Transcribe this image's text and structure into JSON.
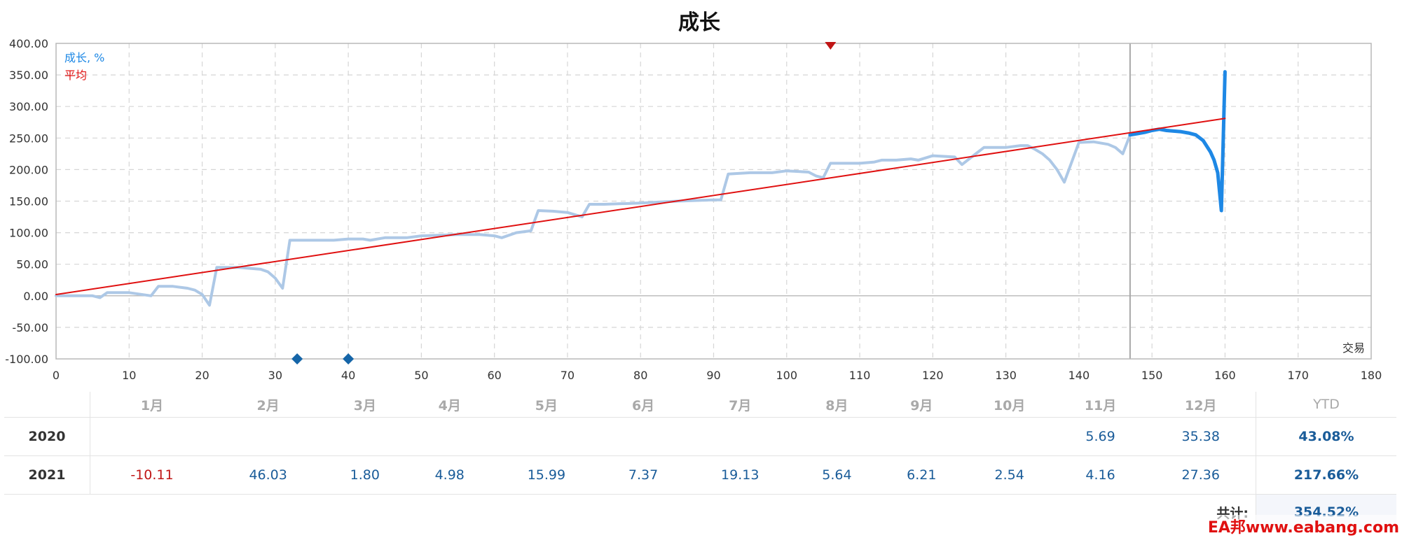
{
  "chart_data": {
    "type": "line",
    "title": "成长",
    "xlabel": "交易",
    "xlim": [
      0,
      180
    ],
    "ylim": [
      -100,
      400
    ],
    "xticks": [
      0,
      10,
      20,
      30,
      40,
      50,
      60,
      70,
      80,
      90,
      100,
      110,
      120,
      130,
      140,
      150,
      160,
      170,
      180
    ],
    "yticks": [
      "400.00",
      "350.00",
      "300.00",
      "250.00",
      "200.00",
      "150.00",
      "100.00",
      "50.00",
      "0.00",
      "-50.00",
      "-100.00"
    ],
    "grid": true,
    "legend_position": "top-left",
    "divider_x": 147,
    "series": [
      {
        "name": "成长, %",
        "color": "#adc8e6",
        "x": [
          0,
          5,
          6,
          7,
          10,
          13,
          14,
          16,
          18,
          19,
          20,
          21,
          22,
          25,
          28,
          29,
          30,
          31,
          32,
          35,
          38,
          40,
          42,
          43,
          45,
          48,
          50,
          55,
          58,
          60,
          61,
          63,
          65,
          66,
          68,
          70,
          72,
          73,
          75,
          80,
          85,
          90,
          91,
          92,
          95,
          98,
          100,
          103,
          104,
          105,
          106,
          108,
          110,
          112,
          113,
          115,
          117,
          118,
          120,
          123,
          124,
          127,
          130,
          132,
          133,
          134,
          135,
          136,
          137,
          138,
          140,
          142,
          144,
          145,
          146,
          147
        ],
        "y": [
          0,
          0,
          -3,
          5,
          5,
          0,
          15,
          15,
          12,
          9,
          2,
          -15,
          45,
          45,
          42,
          38,
          28,
          12,
          88,
          88,
          88,
          90,
          90,
          88,
          92,
          92,
          95,
          97,
          97,
          95,
          92,
          100,
          103,
          135,
          134,
          132,
          125,
          145,
          145,
          147,
          150,
          152,
          152,
          193,
          195,
          195,
          198,
          196,
          190,
          187,
          210,
          210,
          210,
          212,
          215,
          215,
          217,
          215,
          222,
          220,
          208,
          235,
          235,
          238,
          238,
          232,
          225,
          215,
          200,
          180,
          243,
          244,
          240,
          235,
          225,
          255
        ]
      },
      {
        "name": "",
        "color": "#1e88e5",
        "x": [
          147,
          148,
          149,
          150,
          151,
          152,
          153,
          154,
          155,
          156,
          157,
          158,
          158.5,
          159,
          159.5,
          160
        ],
        "y": [
          255,
          257,
          259,
          262,
          264,
          262,
          261,
          260,
          258,
          255,
          246,
          228,
          215,
          195,
          135,
          355
        ]
      },
      {
        "name": "平均",
        "color": "#e01010",
        "x": [
          0,
          160
        ],
        "y": [
          2,
          281
        ]
      }
    ],
    "markers": [
      {
        "x": 106,
        "y": 400,
        "color": "#c01515",
        "shape": "triangle-down"
      },
      {
        "x": 33,
        "y": -100,
        "color": "#1565a8",
        "shape": "diamond"
      },
      {
        "x": 40,
        "y": -100,
        "color": "#1565a8",
        "shape": "diamond"
      }
    ]
  },
  "table": {
    "months": [
      "1月",
      "2月",
      "3月",
      "4月",
      "5月",
      "6月",
      "7月",
      "8月",
      "9月",
      "10月",
      "11月",
      "12月"
    ],
    "ytd_label": "YTD",
    "rows": [
      {
        "year": "2020",
        "values": [
          "",
          "",
          "",
          "",
          "",
          "",
          "",
          "",
          "",
          "",
          "5.69",
          "35.38"
        ],
        "ytd": "43.08%"
      },
      {
        "year": "2021",
        "values": [
          "-10.11",
          "46.03",
          "1.80",
          "4.98",
          "15.99",
          "7.37",
          "19.13",
          "5.64",
          "6.21",
          "2.54",
          "4.16",
          "27.36"
        ],
        "ytd": "217.66%"
      }
    ],
    "total_label": "共计:",
    "total_value": "354.52%"
  },
  "watermark": "EA邦www.eabang.com"
}
